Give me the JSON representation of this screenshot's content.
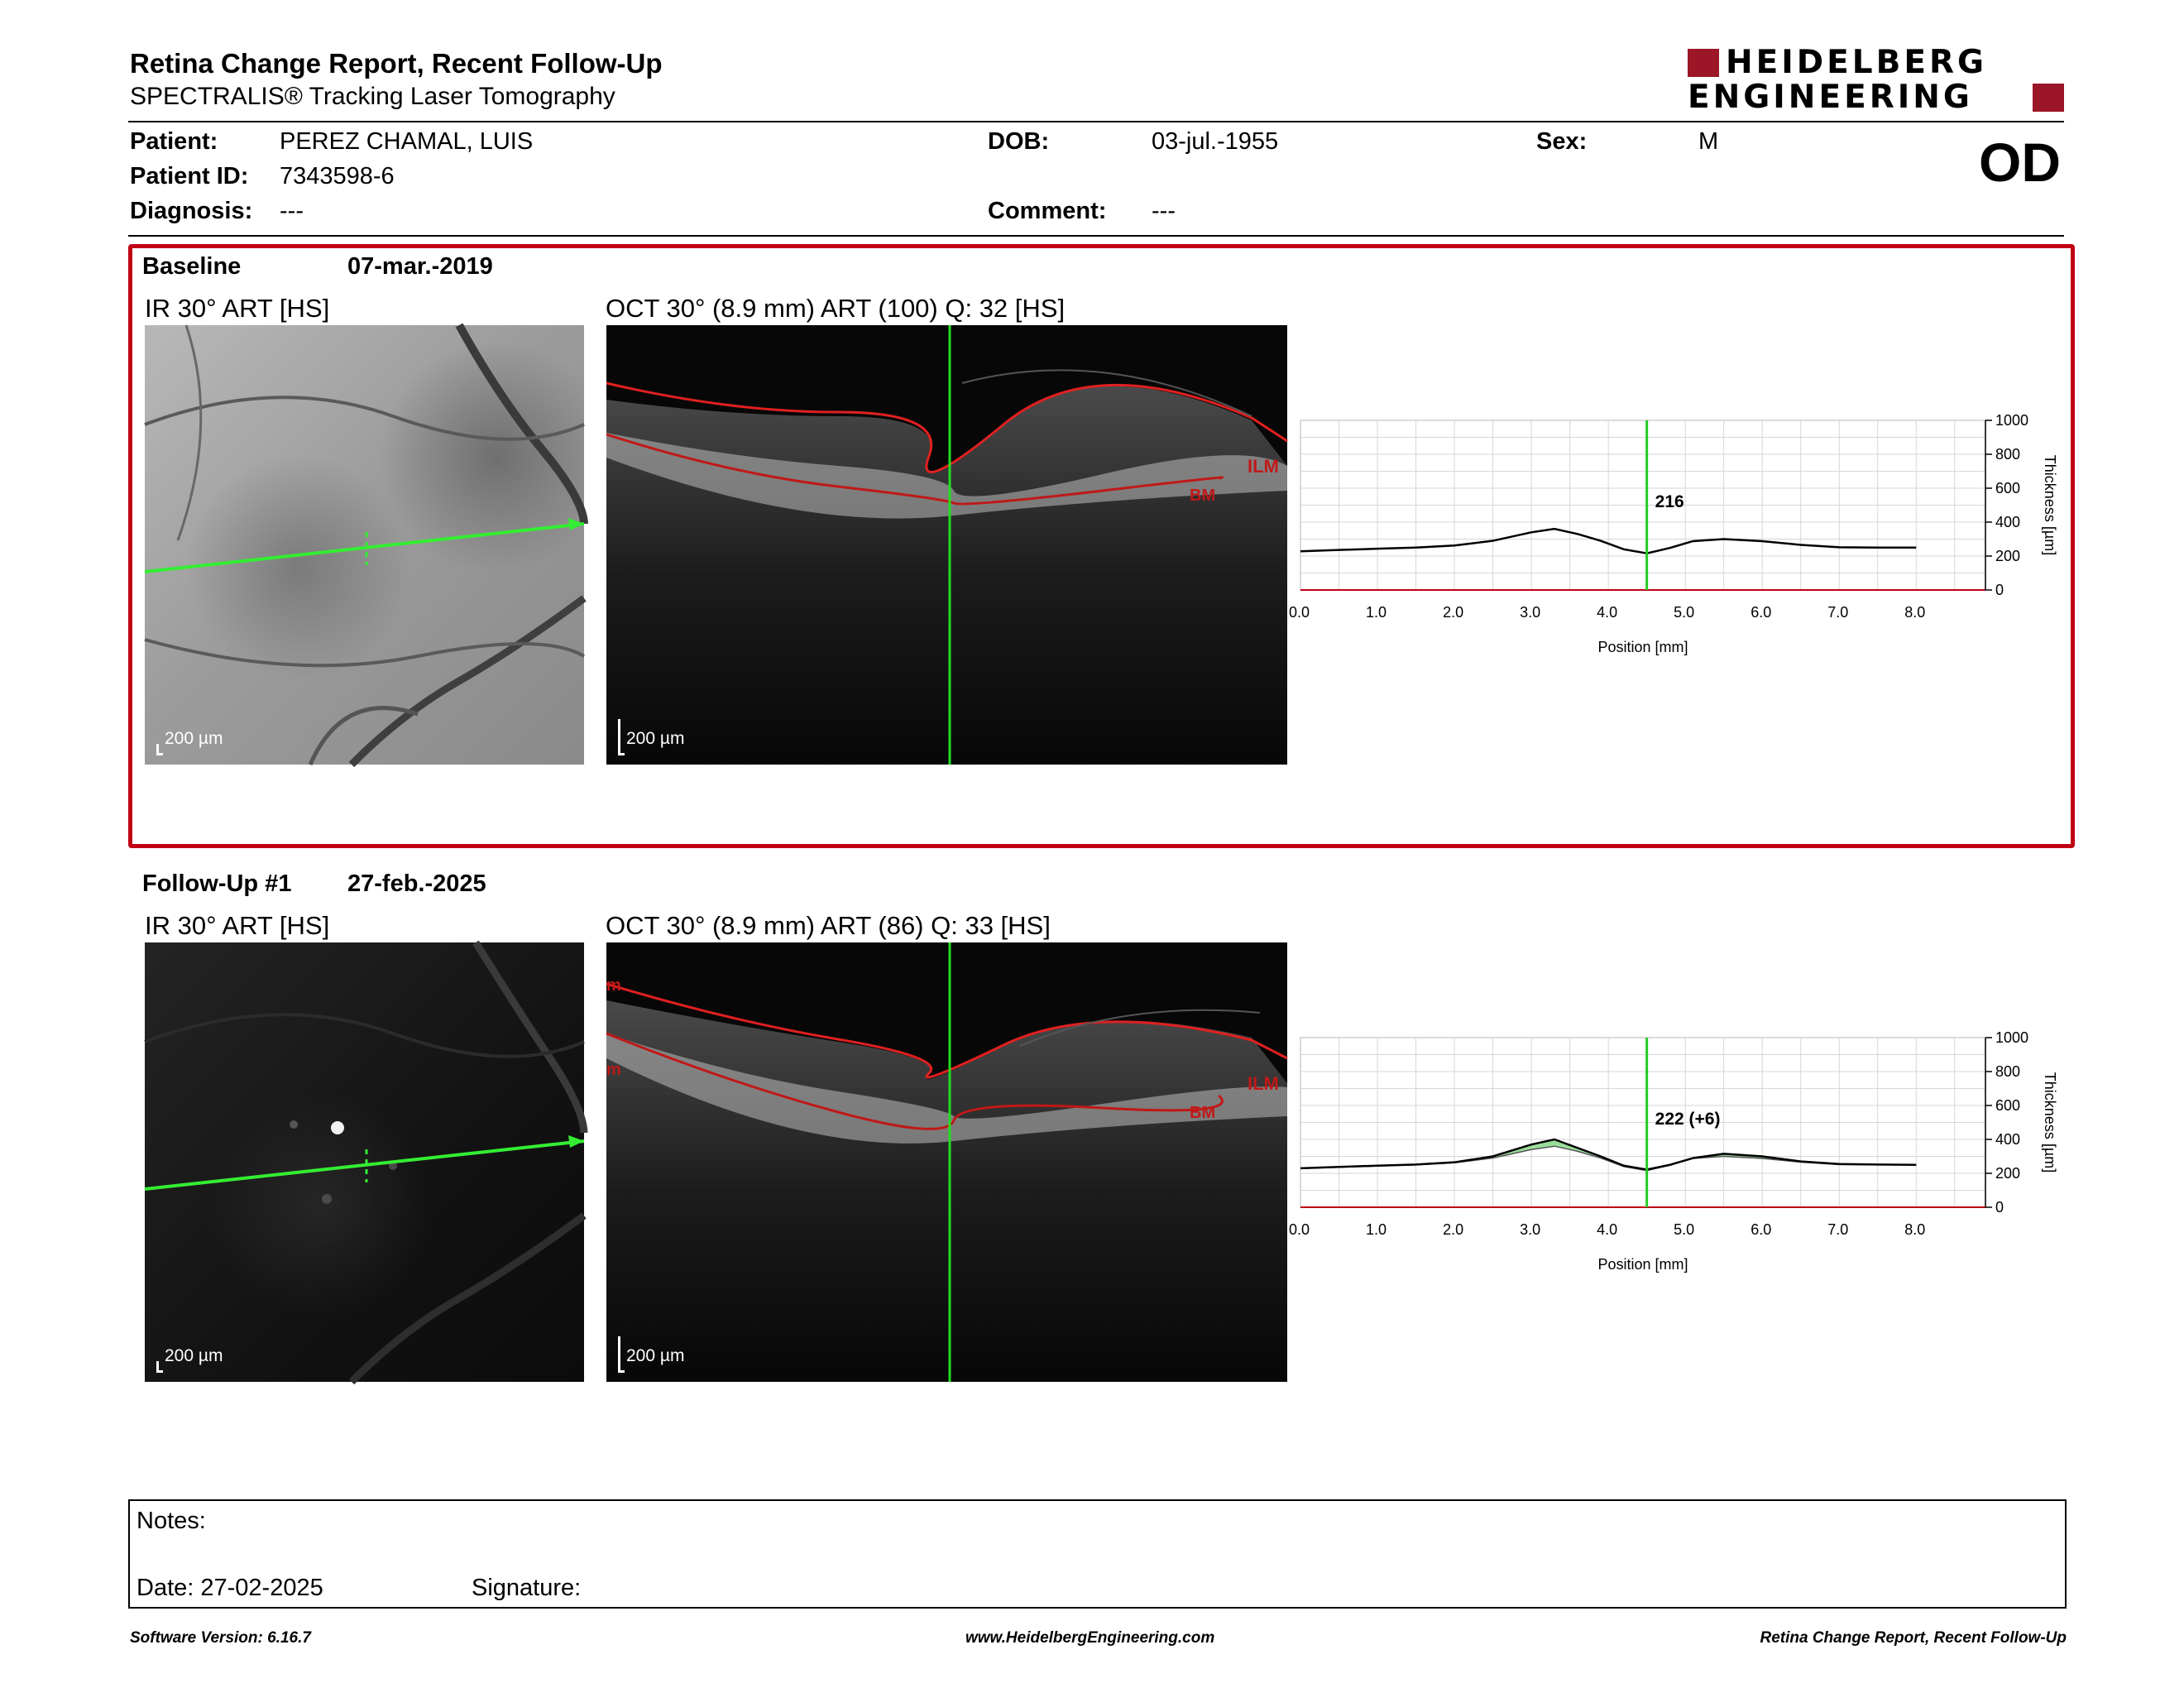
{
  "header": {
    "title": "Retina Change Report, Recent Follow-Up",
    "subtitle": "SPECTRALIS® Tracking Laser Tomography",
    "logo_line1": "HEIDELBERG",
    "logo_line2": "ENGINEERING",
    "brand_color": "#9b1626"
  },
  "patient": {
    "patient_label": "Patient:",
    "patient_value": "PEREZ CHAMAL, LUIS",
    "id_label": "Patient ID:",
    "id_value": "7343598-6",
    "diagnosis_label": "Diagnosis:",
    "diagnosis_value": "---",
    "dob_label": "DOB:",
    "dob_value": "03-jul.-1955",
    "comment_label": "Comment:",
    "comment_value": "---",
    "sex_label": "Sex:",
    "sex_value": "M",
    "eye": "OD"
  },
  "baseline": {
    "label": "Baseline",
    "date": "07-mar.-2019",
    "ir_caption": "IR 30° ART [HS]",
    "oct_caption": "OCT 30° (8.9 mm) ART (100) Q: 32 [HS]",
    "ir_scale": "200 µm",
    "oct_scale": "200 µm",
    "ilm_label": "ILM",
    "bm_label": "BM",
    "highlight_color": "#c00015"
  },
  "followup": {
    "label": "Follow-Up #1",
    "date": "27-feb.-2025",
    "ir_caption": "IR 30° ART [HS]",
    "oct_caption": "OCT 30° (8.9 mm) ART (86) Q: 33 [HS]",
    "ir_scale": "200 µm",
    "oct_scale": "200 µm",
    "ilm_label": "ILM",
    "bm_label": "BM"
  },
  "chart_data": [
    {
      "type": "line",
      "xlabel": "Position [mm]",
      "ylabel": "Thickness [µm]",
      "xlim": [
        0,
        8.9
      ],
      "ylim": [
        0,
        1000
      ],
      "x_ticks": [
        "0.0",
        "1.0",
        "2.0",
        "3.0",
        "4.0",
        "5.0",
        "6.0",
        "7.0",
        "8.0"
      ],
      "y_ticks": [
        "0",
        "200",
        "400",
        "600",
        "800",
        "1000"
      ],
      "grid": true,
      "cursor_x": 4.5,
      "cursor_label": "216",
      "cursor_color": "#22cc22",
      "series": [
        {
          "color": "#000000",
          "x": [
            0,
            0.5,
            1.0,
            1.5,
            2.0,
            2.5,
            3.0,
            3.3,
            3.6,
            3.9,
            4.2,
            4.5,
            4.8,
            5.1,
            5.5,
            6.0,
            6.5,
            7.0,
            7.5,
            8.0
          ],
          "values": [
            228,
            236,
            243,
            250,
            262,
            290,
            340,
            360,
            330,
            290,
            240,
            216,
            248,
            288,
            300,
            288,
            266,
            252,
            250,
            250
          ]
        }
      ]
    },
    {
      "type": "line",
      "xlabel": "Position [mm]",
      "ylabel": "Thickness [µm]",
      "xlim": [
        0,
        8.9
      ],
      "ylim": [
        0,
        1000
      ],
      "x_ticks": [
        "0.0",
        "1.0",
        "2.0",
        "3.0",
        "4.0",
        "5.0",
        "6.0",
        "7.0",
        "8.0"
      ],
      "y_ticks": [
        "0",
        "200",
        "400",
        "600",
        "800",
        "1000"
      ],
      "grid": true,
      "cursor_x": 4.5,
      "cursor_label": "222 (+6)",
      "cursor_color": "#22cc22",
      "increase_color": "#8fd98f",
      "decrease_color": "#e39a9a",
      "series": [
        {
          "color": "#000000",
          "x": [
            0,
            0.5,
            1.0,
            1.5,
            2.0,
            2.5,
            3.0,
            3.3,
            3.6,
            3.9,
            4.2,
            4.5,
            4.8,
            5.1,
            5.5,
            6.0,
            6.5,
            7.0,
            7.5,
            8.0
          ],
          "values": [
            230,
            238,
            245,
            252,
            265,
            300,
            370,
            400,
            350,
            300,
            245,
            222,
            250,
            290,
            315,
            300,
            270,
            255,
            252,
            250
          ]
        }
      ]
    }
  ],
  "notes": {
    "notes_label": "Notes:",
    "date_label": "Date: 27-02-2025",
    "signature_label": "Signature:"
  },
  "footer": {
    "software": "Software Version: 6.16.7",
    "website": "www.HeidelbergEngineering.com",
    "report_name": "Retina Change Report, Recent Follow-Up"
  }
}
